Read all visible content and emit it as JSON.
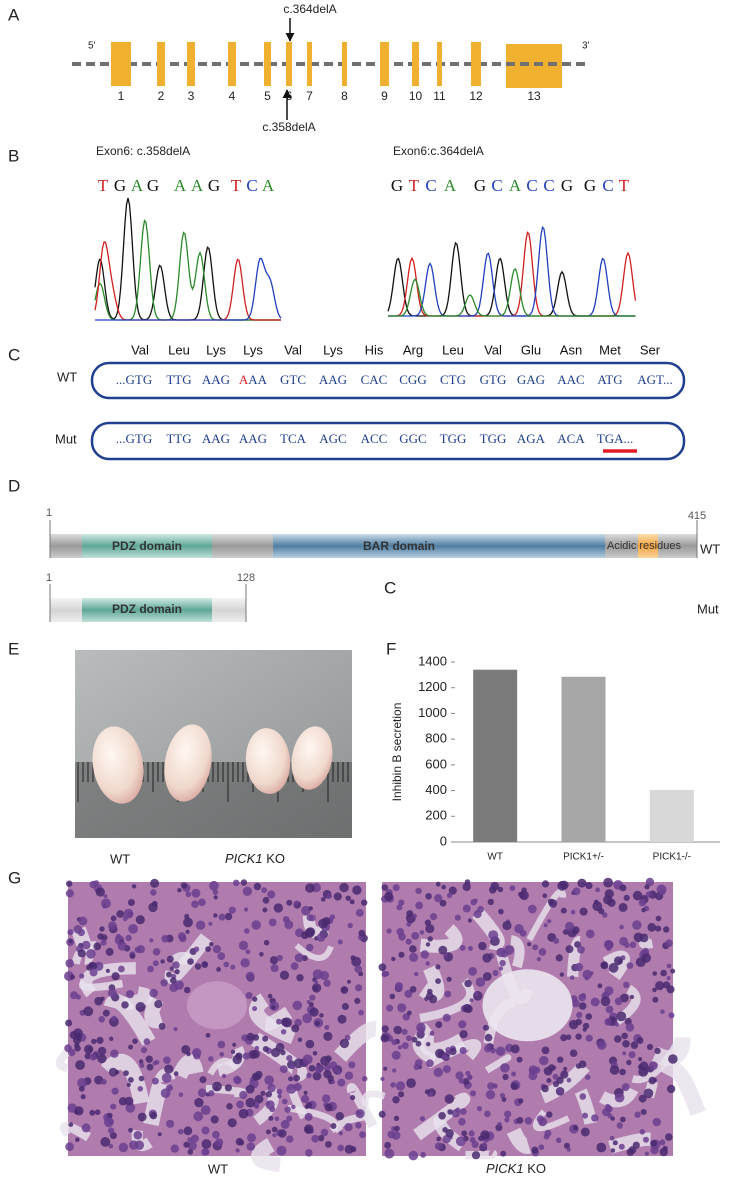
{
  "panels": {
    "a": {
      "label": "A",
      "five_prime": "5'",
      "three_prime": "3'",
      "exons": [
        1,
        2,
        3,
        4,
        5,
        6,
        7,
        8,
        9,
        10,
        11,
        12,
        13
      ],
      "mutation_top": "c.364delA",
      "mutation_bottom": "c.358delA"
    },
    "b": {
      "label": "B",
      "left_title": "Exon6: c.358delA",
      "left_bases": [
        "T",
        "G",
        "A",
        "G",
        "A",
        "A",
        "G",
        "T",
        "C",
        "A"
      ],
      "right_title": "Exon6:c.364delA",
      "right_bases": [
        "G",
        "T",
        "C",
        "A",
        "G",
        "C",
        "A",
        "C",
        "C",
        "G",
        "G",
        "C",
        "T"
      ]
    },
    "c": {
      "label": "C",
      "amino_acids": [
        "Val",
        "Leu",
        "Lys",
        "Lys",
        "Val",
        "Lys",
        "His",
        "Arg",
        "Leu",
        "Val",
        "Glu",
        "Asn",
        "Met",
        "Ser"
      ],
      "wt_label": "WT",
      "wt_codons": [
        "...GTG",
        "TTG",
        "AAG",
        {
          "deleted": "A",
          "rest": "AA"
        },
        "GTC",
        "AAG",
        "CAC",
        "CGG",
        "CTG",
        "GTG",
        "GAG",
        "AAC",
        "ATG",
        "AGT..."
      ],
      "mut_label": "Mut",
      "mut_codons": [
        "...GTG",
        "TTG",
        "AAG",
        "AAG",
        "TCA",
        "AGC",
        "ACC",
        "GGC",
        "TGG",
        "TGG",
        "AGA",
        "ACA",
        "TGA..."
      ]
    },
    "d": {
      "label": "D",
      "wt_start": "1",
      "wt_end": "415",
      "pdz": "PDZ domain",
      "bar": "BAR domain",
      "acidic": "Acidic residues",
      "wt_label": "WT",
      "mut_start": "1",
      "mut_end": "128",
      "mut_pdz": "PDZ domain",
      "stray": "C",
      "mut_label": "Mut"
    },
    "e": {
      "label": "E",
      "wt": "WT",
      "ko_gene": "PICK1",
      "ko_suffix": " KO"
    },
    "f": {
      "label": "F"
    },
    "g": {
      "label": "G",
      "wt": "WT",
      "ko_gene": "PICK1",
      "ko_suffix": " KO"
    }
  },
  "chart_data": {
    "type": "bar",
    "y_label": "Inhibin B secretion",
    "categories": [
      "WT",
      "PICK1+/-",
      "PICK1-/-"
    ],
    "values": [
      1340,
      1285,
      405
    ],
    "colors": [
      "#7b7b7b",
      "#a6a6a6",
      "#d8d8d8"
    ],
    "ylim": [
      0,
      1400
    ],
    "yticks": [
      0,
      200,
      400,
      600,
      800,
      1000,
      1200,
      1400
    ]
  }
}
